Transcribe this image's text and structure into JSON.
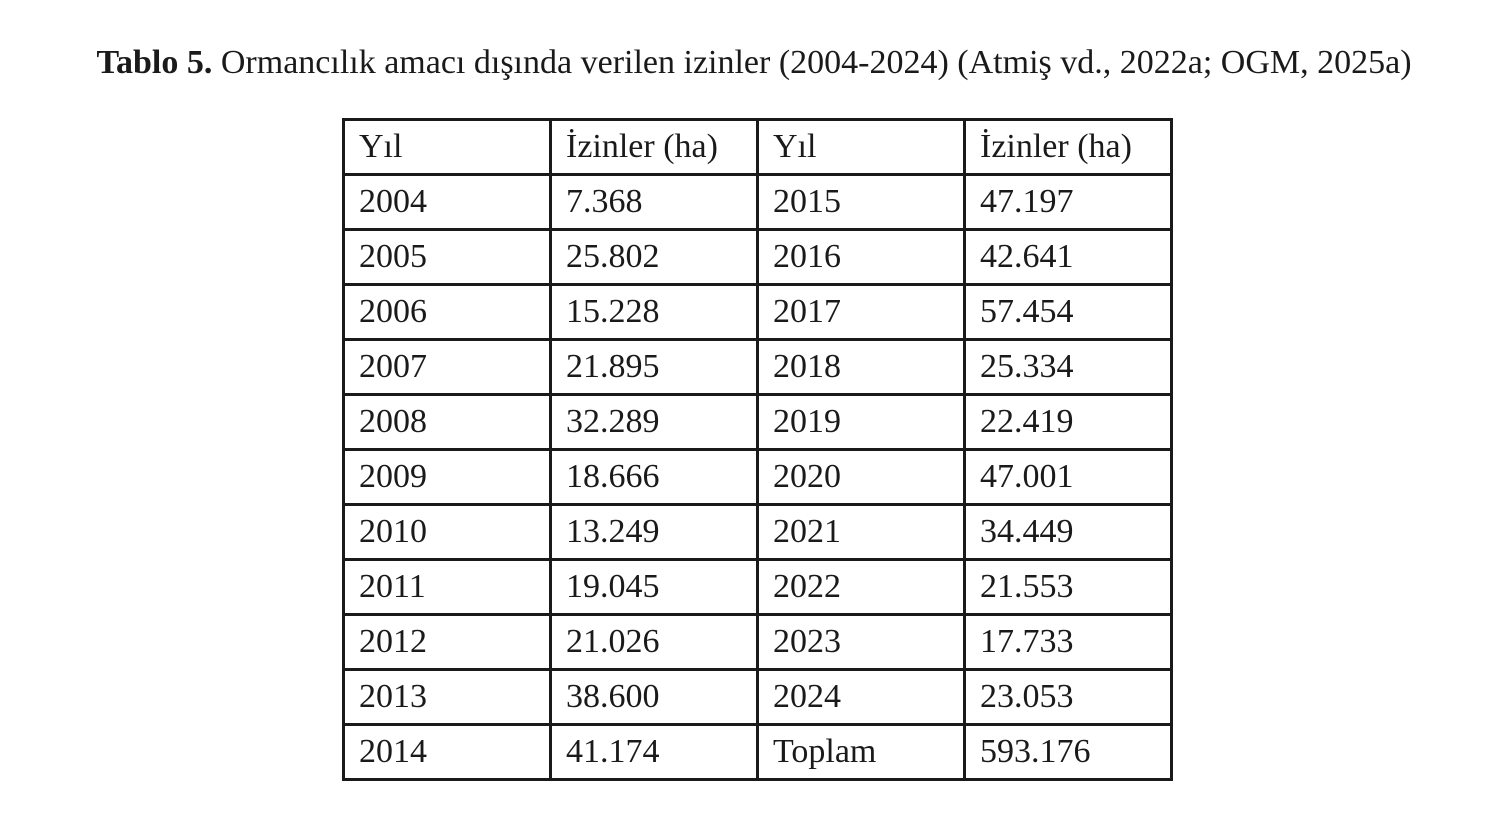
{
  "caption": {
    "label": "Tablo 5.",
    "text": "Ormancılık amacı dışında verilen izinler (2004-2024) (Atmiş vd., 2022a; OGM, 2025a)"
  },
  "table": {
    "header": [
      "Yıl",
      "İzinler (ha)",
      "Yıl",
      "İzinler (ha)"
    ],
    "rows": [
      [
        "2004",
        "7.368",
        "2015",
        "47.197"
      ],
      [
        "2005",
        "25.802",
        "2016",
        "42.641"
      ],
      [
        "2006",
        "15.228",
        "2017",
        "57.454"
      ],
      [
        "2007",
        "21.895",
        "2018",
        "25.334"
      ],
      [
        "2008",
        "32.289",
        "2019",
        "22.419"
      ],
      [
        "2009",
        "18.666",
        "2020",
        "47.001"
      ],
      [
        "2010",
        "13.249",
        "2021",
        "34.449"
      ],
      [
        "2011",
        "19.045",
        "2022",
        "21.553"
      ],
      [
        "2012",
        "21.026",
        "2023",
        "17.733"
      ],
      [
        "2013",
        "38.600",
        "2024",
        "23.053"
      ],
      [
        "2014",
        "41.174",
        "Toplam",
        "593.176"
      ]
    ]
  }
}
